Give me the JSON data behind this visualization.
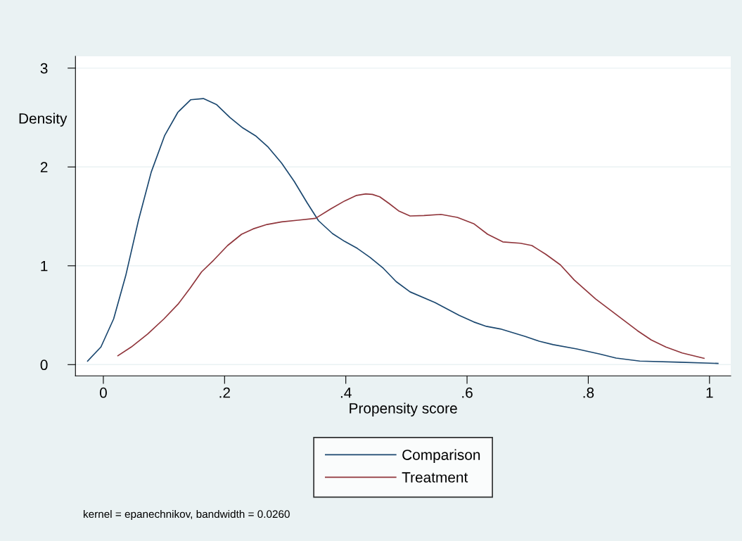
{
  "chart_data": {
    "type": "line",
    "xlabel": "Propensity score",
    "ylabel": "Density",
    "xlim": [
      -0.046,
      1.035
    ],
    "ylim": [
      -0.114,
      3.12
    ],
    "xticks": [
      0,
      {
        "value": 0.2,
        "label": ".2"
      },
      {
        "value": 0.4,
        "label": ".4"
      },
      {
        "value": 0.6,
        "label": ".6"
      },
      {
        "value": 0.8,
        "label": ".8"
      },
      1
    ],
    "yticks": [
      0,
      1,
      2,
      3
    ],
    "grid": "y",
    "legend": "bottom",
    "marker": "none",
    "line_style": "solid",
    "annotations": [
      "kernel = epanechnikov, bandwidth = 0.0260"
    ],
    "series": [
      {
        "name": "Comparison",
        "color": "#1a476f",
        "x": [
          -0.026,
          -0.004,
          0.017,
          0.037,
          0.058,
          0.079,
          0.101,
          0.123,
          0.144,
          0.165,
          0.187,
          0.209,
          0.23,
          0.251,
          0.272,
          0.294,
          0.315,
          0.336,
          0.355,
          0.378,
          0.398,
          0.419,
          0.44,
          0.462,
          0.483,
          0.506,
          0.547,
          0.587,
          0.611,
          0.632,
          0.655,
          0.696,
          0.719,
          0.742,
          0.781,
          0.819,
          0.846,
          0.885,
          0.951,
          1.014
        ],
        "values": [
          0.036,
          0.178,
          0.463,
          0.902,
          1.461,
          1.948,
          2.316,
          2.554,
          2.68,
          2.692,
          2.63,
          2.5,
          2.395,
          2.316,
          2.2,
          2.04,
          1.853,
          1.639,
          1.456,
          1.326,
          1.247,
          1.176,
          1.085,
          0.974,
          0.84,
          0.736,
          0.629,
          0.499,
          0.432,
          0.387,
          0.361,
          0.285,
          0.237,
          0.202,
          0.159,
          0.107,
          0.066,
          0.036,
          0.024,
          0.012
        ]
      },
      {
        "name": "Treatment",
        "color": "#90353b",
        "x": [
          0.024,
          0.046,
          0.073,
          0.1,
          0.124,
          0.143,
          0.162,
          0.182,
          0.205,
          0.228,
          0.247,
          0.27,
          0.294,
          0.321,
          0.35,
          0.375,
          0.398,
          0.417,
          0.433,
          0.444,
          0.456,
          0.471,
          0.487,
          0.506,
          0.529,
          0.557,
          0.584,
          0.611,
          0.634,
          0.659,
          0.688,
          0.707,
          0.73,
          0.754,
          0.777,
          0.812,
          0.835,
          0.858,
          0.881,
          0.904,
          0.928,
          0.955,
          0.991
        ],
        "values": [
          0.09,
          0.178,
          0.309,
          0.463,
          0.617,
          0.772,
          0.938,
          1.057,
          1.205,
          1.319,
          1.373,
          1.418,
          1.444,
          1.461,
          1.48,
          1.575,
          1.656,
          1.711,
          1.727,
          1.722,
          1.698,
          1.632,
          1.556,
          1.504,
          1.508,
          1.52,
          1.49,
          1.426,
          1.319,
          1.242,
          1.228,
          1.205,
          1.116,
          1.009,
          0.855,
          0.665,
          0.558,
          0.451,
          0.344,
          0.249,
          0.178,
          0.118,
          0.064
        ]
      }
    ]
  }
}
